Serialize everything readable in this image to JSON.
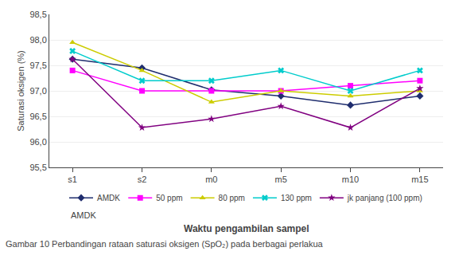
{
  "chart_data": {
    "type": "line",
    "categories": [
      "s1",
      "s2",
      "m0",
      "m5",
      "m10",
      "m15"
    ],
    "series": [
      {
        "name": "AMDK",
        "color": "#1F2D6E",
        "marker": "diamond",
        "values": [
          97.62,
          97.45,
          97.02,
          96.9,
          96.72,
          96.9
        ]
      },
      {
        "name": "50 ppm",
        "color": "#FF00FF",
        "marker": "square",
        "values": [
          97.4,
          97.0,
          97.0,
          97.0,
          97.1,
          97.2
        ]
      },
      {
        "name": "80 ppm",
        "color": "#CCCC00",
        "marker": "triangle-up",
        "values": [
          97.95,
          97.4,
          96.78,
          97.0,
          96.9,
          97.0
        ]
      },
      {
        "name": "130 ppm",
        "color": "#00CCCC",
        "marker": "x",
        "values": [
          97.78,
          97.2,
          97.2,
          97.4,
          97.0,
          97.4
        ]
      },
      {
        "name": "jk panjang (100 ppm)",
        "color": "#800080",
        "marker": "star",
        "values": [
          97.62,
          96.28,
          96.45,
          96.7,
          96.28,
          97.05
        ]
      }
    ],
    "ylabel": "Saturasi oksigen (%)",
    "xlabel": "Waktu pengambilan sampel",
    "annotations": [
      "AMDK"
    ],
    "caption": "Gambar 10 Perbandingan rataan saturasi oksigen (SpO₂) pada berbagai perlakua",
    "ylim": [
      95.5,
      98.5
    ],
    "yticks": [
      {
        "value": 95.5,
        "label": "95,5"
      },
      {
        "value": 96.0,
        "label": "96,0"
      },
      {
        "value": 96.5,
        "label": "96,5"
      },
      {
        "value": 97.0,
        "label": "97,0"
      },
      {
        "value": 97.5,
        "label": "97,5"
      },
      {
        "value": 98.0,
        "label": "98,0"
      },
      {
        "value": 98.5,
        "label": "98,5"
      }
    ],
    "grid": true,
    "legend": "bottom"
  }
}
